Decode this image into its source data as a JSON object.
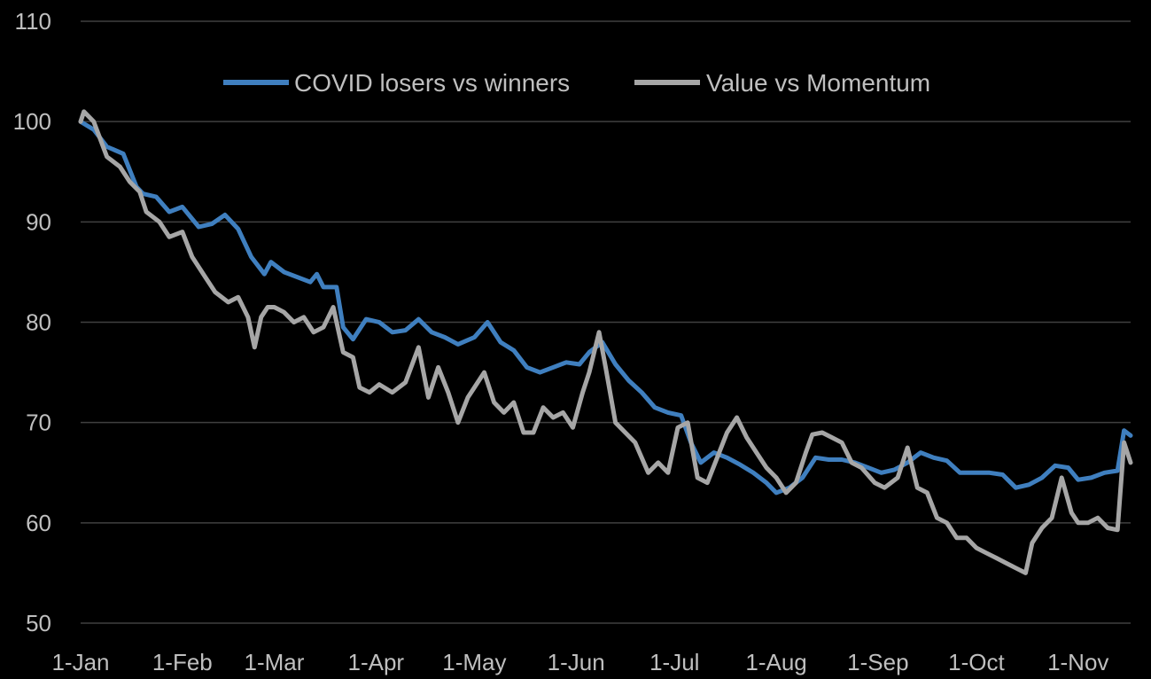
{
  "chart_data": {
    "type": "line",
    "title": "",
    "xlabel": "",
    "ylabel": "",
    "ylim": [
      50,
      110
    ],
    "yticks": [
      50,
      60,
      70,
      80,
      90,
      100,
      110
    ],
    "x_tick_labels": [
      "1-Jan",
      "1-Feb",
      "1-Mar",
      "1-Apr",
      "1-May",
      "1-Jun",
      "1-Jul",
      "1-Aug",
      "1-Sep",
      "1-Oct",
      "1-Nov"
    ],
    "x_tick_days": [
      0,
      31,
      59,
      90,
      120,
      151,
      181,
      212,
      243,
      273,
      304
    ],
    "grid": true,
    "legend_position": "top-center",
    "background": "#000000",
    "series": [
      {
        "name": "COVID losers vs winners",
        "color": "#3f7fbf",
        "points": [
          [
            "1-Jan",
            100
          ],
          [
            "5-Jan",
            99.2
          ],
          [
            "9-Jan",
            97.5
          ],
          [
            "14-Jan",
            96.8
          ],
          [
            "18-Jan",
            93.5
          ],
          [
            "20-Jan",
            92.8
          ],
          [
            "24-Jan",
            92.5
          ],
          [
            "28-Jan",
            91.0
          ],
          [
            "1-Feb",
            91.5
          ],
          [
            "6-Feb",
            89.5
          ],
          [
            "10-Feb",
            89.8
          ],
          [
            "14-Feb",
            90.7
          ],
          [
            "18-Feb",
            89.3
          ],
          [
            "22-Feb",
            86.5
          ],
          [
            "26-Feb",
            84.8
          ],
          [
            "28-Feb",
            86.0
          ],
          [
            "4-Mar",
            85.0
          ],
          [
            "8-Mar",
            84.5
          ],
          [
            "12-Mar",
            84.0
          ],
          [
            "14-Mar",
            84.8
          ],
          [
            "16-Mar",
            83.5
          ],
          [
            "20-Mar",
            83.5
          ],
          [
            "22-Mar",
            79.5
          ],
          [
            "25-Mar",
            78.3
          ],
          [
            "29-Mar",
            80.3
          ],
          [
            "2-Apr",
            80.0
          ],
          [
            "6-Apr",
            79.0
          ],
          [
            "10-Apr",
            79.2
          ],
          [
            "14-Apr",
            80.3
          ],
          [
            "18-Apr",
            79.0
          ],
          [
            "22-Apr",
            78.5
          ],
          [
            "26-Apr",
            77.8
          ],
          [
            "1-May",
            78.5
          ],
          [
            "5-May",
            80.0
          ],
          [
            "9-May",
            78.0
          ],
          [
            "13-May",
            77.2
          ],
          [
            "17-May",
            75.5
          ],
          [
            "21-May",
            75.0
          ],
          [
            "25-May",
            75.5
          ],
          [
            "29-May",
            76.0
          ],
          [
            "2-Jun",
            75.8
          ],
          [
            "5-Jun",
            77.0
          ],
          [
            "9-Jun",
            78.0
          ],
          [
            "13-Jun",
            75.8
          ],
          [
            "17-Jun",
            74.2
          ],
          [
            "21-Jun",
            73.0
          ],
          [
            "25-Jun",
            71.5
          ],
          [
            "29-Jun",
            71.0
          ],
          [
            "3-Jul",
            70.7
          ],
          [
            "6-Jul",
            68.0
          ],
          [
            "9-Jul",
            66.0
          ],
          [
            "13-Jul",
            67.0
          ],
          [
            "17-Jul",
            66.5
          ],
          [
            "21-Jul",
            65.8
          ],
          [
            "25-Jul",
            65.0
          ],
          [
            "29-Jul",
            64.0
          ],
          [
            "1-Aug",
            63.0
          ],
          [
            "5-Aug",
            63.5
          ],
          [
            "9-Aug",
            64.5
          ],
          [
            "13-Aug",
            66.5
          ],
          [
            "17-Aug",
            66.3
          ],
          [
            "21-Aug",
            66.3
          ],
          [
            "25-Aug",
            66.0
          ],
          [
            "29-Aug",
            65.5
          ],
          [
            "2-Sep",
            65.0
          ],
          [
            "6-Sep",
            65.3
          ],
          [
            "10-Sep",
            66.0
          ],
          [
            "14-Sep",
            67.0
          ],
          [
            "18-Sep",
            66.5
          ],
          [
            "22-Sep",
            66.2
          ],
          [
            "26-Sep",
            65.0
          ],
          [
            "1-Oct",
            65.0
          ],
          [
            "5-Oct",
            65.0
          ],
          [
            "9-Oct",
            64.8
          ],
          [
            "13-Oct",
            63.5
          ],
          [
            "17-Oct",
            63.8
          ],
          [
            "21-Oct",
            64.5
          ],
          [
            "25-Oct",
            65.7
          ],
          [
            "29-Oct",
            65.5
          ],
          [
            "1-Nov",
            64.3
          ],
          [
            "5-Nov",
            64.5
          ],
          [
            "9-Nov",
            65.0
          ],
          [
            "13-Nov",
            65.2
          ],
          [
            "15-Nov",
            69.2
          ],
          [
            "17-Nov",
            68.7
          ]
        ]
      },
      {
        "name": "Value vs Momentum",
        "color": "#a6a6a6",
        "points": [
          [
            "1-Jan",
            100
          ],
          [
            "2-Jan",
            101.0
          ],
          [
            "5-Jan",
            100.0
          ],
          [
            "9-Jan",
            96.5
          ],
          [
            "13-Jan",
            95.5
          ],
          [
            "16-Jan",
            94.0
          ],
          [
            "19-Jan",
            93.0
          ],
          [
            "21-Jan",
            91.0
          ],
          [
            "25-Jan",
            90.0
          ],
          [
            "28-Jan",
            88.5
          ],
          [
            "1-Feb",
            89.0
          ],
          [
            "4-Feb",
            86.5
          ],
          [
            "8-Feb",
            84.5
          ],
          [
            "11-Feb",
            83.0
          ],
          [
            "15-Feb",
            82.0
          ],
          [
            "18-Feb",
            82.5
          ],
          [
            "21-Feb",
            80.5
          ],
          [
            "23-Feb",
            77.5
          ],
          [
            "25-Feb",
            80.5
          ],
          [
            "27-Feb",
            81.5
          ],
          [
            "1-Mar",
            81.5
          ],
          [
            "4-Mar",
            81.0
          ],
          [
            "7-Mar",
            80.0
          ],
          [
            "10-Mar",
            80.5
          ],
          [
            "13-Mar",
            79.0
          ],
          [
            "16-Mar",
            79.5
          ],
          [
            "19-Mar",
            81.5
          ],
          [
            "22-Mar",
            77.0
          ],
          [
            "25-Mar",
            76.5
          ],
          [
            "27-Mar",
            73.5
          ],
          [
            "30-Mar",
            73.0
          ],
          [
            "2-Apr",
            73.8
          ],
          [
            "6-Apr",
            73.0
          ],
          [
            "10-Apr",
            74.0
          ],
          [
            "14-Apr",
            77.5
          ],
          [
            "17-Apr",
            72.5
          ],
          [
            "20-Apr",
            75.5
          ],
          [
            "23-Apr",
            73.0
          ],
          [
            "26-Apr",
            70.0
          ],
          [
            "29-Apr",
            72.5
          ],
          [
            "1-May",
            73.5
          ],
          [
            "4-May",
            75.0
          ],
          [
            "7-May",
            72.0
          ],
          [
            "10-May",
            71.0
          ],
          [
            "13-May",
            72.0
          ],
          [
            "16-May",
            69.0
          ],
          [
            "19-May",
            69.0
          ],
          [
            "22-May",
            71.5
          ],
          [
            "25-May",
            70.5
          ],
          [
            "28-May",
            71.0
          ],
          [
            "31-May",
            69.5
          ],
          [
            "3-Jun",
            73.0
          ],
          [
            "5-Jun",
            75.0
          ],
          [
            "8-Jun",
            79.0
          ],
          [
            "10-Jun",
            75.5
          ],
          [
            "13-Jun",
            70.0
          ],
          [
            "16-Jun",
            69.0
          ],
          [
            "19-Jun",
            68.0
          ],
          [
            "23-Jun",
            65.0
          ],
          [
            "26-Jun",
            66.0
          ],
          [
            "29-Jun",
            65.0
          ],
          [
            "2-Jul",
            69.5
          ],
          [
            "5-Jul",
            70.0
          ],
          [
            "8-Jul",
            64.5
          ],
          [
            "11-Jul",
            64.0
          ],
          [
            "14-Jul",
            66.5
          ],
          [
            "17-Jul",
            69.0
          ],
          [
            "20-Jul",
            70.5
          ],
          [
            "23-Jul",
            68.5
          ],
          [
            "26-Jul",
            67.0
          ],
          [
            "29-Jul",
            65.5
          ],
          [
            "1-Aug",
            64.5
          ],
          [
            "4-Aug",
            63.0
          ],
          [
            "7-Aug",
            64.0
          ],
          [
            "10-Aug",
            67.0
          ],
          [
            "12-Aug",
            68.8
          ],
          [
            "15-Aug",
            69.0
          ],
          [
            "18-Aug",
            68.5
          ],
          [
            "21-Aug",
            68.0
          ],
          [
            "24-Aug",
            66.0
          ],
          [
            "27-Aug",
            65.5
          ],
          [
            "31-Aug",
            64.0
          ],
          [
            "3-Sep",
            63.5
          ],
          [
            "7-Sep",
            64.5
          ],
          [
            "10-Sep",
            67.5
          ],
          [
            "13-Sep",
            63.5
          ],
          [
            "16-Sep",
            63.0
          ],
          [
            "19-Sep",
            60.5
          ],
          [
            "22-Sep",
            60.0
          ],
          [
            "25-Sep",
            58.5
          ],
          [
            "28-Sep",
            58.5
          ],
          [
            "1-Oct",
            57.5
          ],
          [
            "4-Oct",
            57.0
          ],
          [
            "7-Oct",
            56.5
          ],
          [
            "10-Oct",
            56.0
          ],
          [
            "13-Oct",
            55.5
          ],
          [
            "16-Oct",
            55.0
          ],
          [
            "18-Oct",
            58.0
          ],
          [
            "21-Oct",
            59.5
          ],
          [
            "24-Oct",
            60.5
          ],
          [
            "27-Oct",
            64.5
          ],
          [
            "30-Oct",
            61.0
          ],
          [
            "1-Nov",
            60.0
          ],
          [
            "4-Nov",
            60.0
          ],
          [
            "7-Nov",
            60.5
          ],
          [
            "10-Nov",
            59.5
          ],
          [
            "13-Nov",
            59.3
          ],
          [
            "15-Nov",
            68.0
          ],
          [
            "17-Nov",
            66.0
          ]
        ]
      }
    ]
  }
}
